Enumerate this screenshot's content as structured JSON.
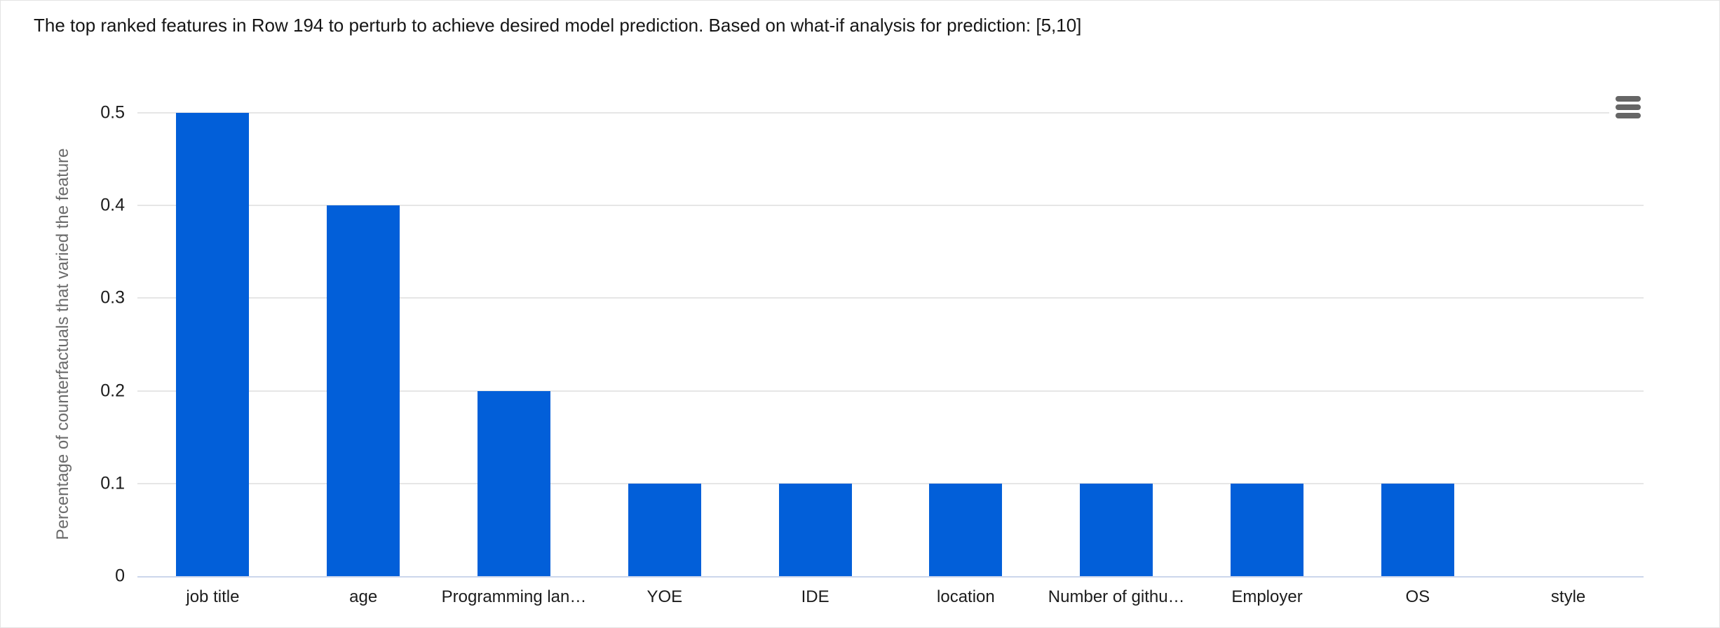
{
  "chart_data": {
    "type": "bar",
    "title": "The top ranked features in Row 194 to perturb to achieve desired model prediction. Based on what-if analysis for prediction: [5,10]",
    "xlabel": "",
    "ylabel": "Percentage of counterfactuals that varied the feature",
    "categories": [
      "job title",
      "age",
      "Programming lan…",
      "YOE",
      "IDE",
      "location",
      "Number of githu…",
      "Employer",
      "OS",
      "style"
    ],
    "values": [
      0.5,
      0.4,
      0.2,
      0.1,
      0.1,
      0.1,
      0.1,
      0.1,
      0.1,
      0
    ],
    "ylim": [
      0,
      0.5
    ],
    "yticks": [
      0,
      0.1,
      0.2,
      0.3,
      0.4,
      0.5
    ],
    "ytick_labels": [
      "0",
      "0.1",
      "0.2",
      "0.3",
      "0.4",
      "0.5"
    ],
    "grid": true,
    "legend": "none",
    "colors": {
      "bar": "#025fd9",
      "gridline": "#e6e6e6",
      "axis_line": "#ccd6eb",
      "tick_label": "#1c1c1c",
      "axis_title": "#6b6b6b",
      "title": "#161616",
      "menu_icon": "#666666"
    }
  },
  "toolbar": {
    "context_menu_icon": "hamburger-icon"
  }
}
